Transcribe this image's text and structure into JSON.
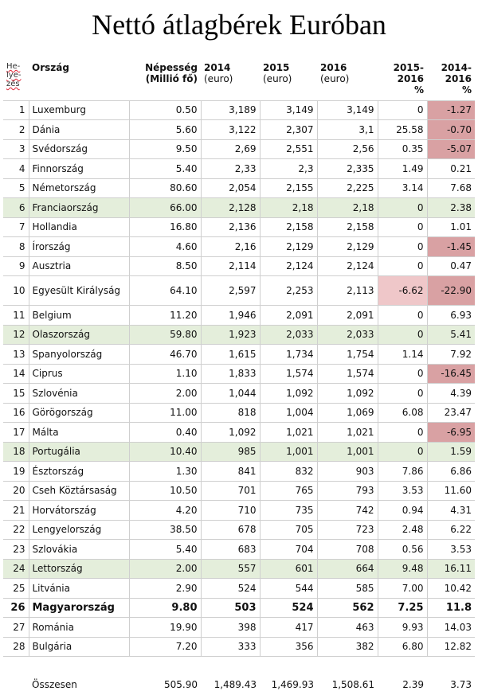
{
  "title": "Nettó átlagbérek Euróban",
  "headers": {
    "rank": "He-lye-zés",
    "country": "Ország",
    "population": "Népesség",
    "population_unit": "(Millió fő)",
    "y2014": "2014",
    "y2015": "2015",
    "y2016": "2016",
    "unit": "(euro)",
    "d1": "2015-2016",
    "d2": "2014-2016",
    "pct": "%"
  },
  "rows": [
    {
      "rank": "1",
      "country": "Luxemburg",
      "pop": "0.50",
      "y14": "3,189",
      "y15": "3,149",
      "y16": "3,149",
      "d1": "0",
      "d2": "-1.27"
    },
    {
      "rank": "2",
      "country": "Dánia",
      "pop": "5.60",
      "y14": "3,122",
      "y15": "2,307",
      "y16": "3,1",
      "d1": "25.58",
      "d2": "-0.70"
    },
    {
      "rank": "3",
      "country": "Svédország",
      "pop": "9.50",
      "y14": "2,69",
      "y15": "2,551",
      "y16": "2,56",
      "d1": "0.35",
      "d2": "-5.07"
    },
    {
      "rank": "4",
      "country": "Finnország",
      "pop": "5.40",
      "y14": "2,33",
      "y15": "2,3",
      "y16": "2,335",
      "d1": "1.49",
      "d2": "0.21"
    },
    {
      "rank": "5",
      "country": "Németország",
      "pop": "80.60",
      "y14": "2,054",
      "y15": "2,155",
      "y16": "2,225",
      "d1": "3.14",
      "d2": "7.68"
    },
    {
      "rank": "6",
      "country": "Franciaország",
      "pop": "66.00",
      "y14": "2,128",
      "y15": "2,18",
      "y16": "2,18",
      "d1": "0",
      "d2": "2.38"
    },
    {
      "rank": "7",
      "country": "Hollandia",
      "pop": "16.80",
      "y14": "2,136",
      "y15": "2,158",
      "y16": "2,158",
      "d1": "0",
      "d2": "1.01"
    },
    {
      "rank": "8",
      "country": "Írország",
      "pop": "4.60",
      "y14": "2,16",
      "y15": "2,129",
      "y16": "2,129",
      "d1": "0",
      "d2": "-1.45"
    },
    {
      "rank": "9",
      "country": "Ausztria",
      "pop": "8.50",
      "y14": "2,114",
      "y15": "2,124",
      "y16": "2,124",
      "d1": "0",
      "d2": "0.47"
    },
    {
      "rank": "10",
      "country": "Egyesült Királyság",
      "pop": "64.10",
      "y14": "2,597",
      "y15": "2,253",
      "y16": "2,113",
      "d1": "-6.62",
      "d2": "-22.90"
    },
    {
      "rank": "11",
      "country": "Belgium",
      "pop": "11.20",
      "y14": "1,946",
      "y15": "2,091",
      "y16": "2,091",
      "d1": "0",
      "d2": "6.93"
    },
    {
      "rank": "12",
      "country": "Olaszország",
      "pop": "59.80",
      "y14": "1,923",
      "y15": "2,033",
      "y16": "2,033",
      "d1": "0",
      "d2": "5.41"
    },
    {
      "rank": "13",
      "country": "Spanyolország",
      "pop": "46.70",
      "y14": "1,615",
      "y15": "1,734",
      "y16": "1,754",
      "d1": "1.14",
      "d2": "7.92"
    },
    {
      "rank": "14",
      "country": "Ciprus",
      "pop": "1.10",
      "y14": "1,833",
      "y15": "1,574",
      "y16": "1,574",
      "d1": "0",
      "d2": "-16.45"
    },
    {
      "rank": "15",
      "country": "Szlovénia",
      "pop": "2.00",
      "y14": "1,044",
      "y15": "1,092",
      "y16": "1,092",
      "d1": "0",
      "d2": "4.39"
    },
    {
      "rank": "16",
      "country": "Görögország",
      "pop": "11.00",
      "y14": "818",
      "y15": "1,004",
      "y16": "1,069",
      "d1": "6.08",
      "d2": "23.47"
    },
    {
      "rank": "17",
      "country": "Málta",
      "pop": "0.40",
      "y14": "1,092",
      "y15": "1,021",
      "y16": "1,021",
      "d1": "0",
      "d2": "-6.95"
    },
    {
      "rank": "18",
      "country": "Portugália",
      "pop": "10.40",
      "y14": "985",
      "y15": "1,001",
      "y16": "1,001",
      "d1": "0",
      "d2": "1.59"
    },
    {
      "rank": "19",
      "country": "Észtország",
      "pop": "1.30",
      "y14": "841",
      "y15": "832",
      "y16": "903",
      "d1": "7.86",
      "d2": "6.86"
    },
    {
      "rank": "20",
      "country": "Cseh Köztársaság",
      "pop": "10.50",
      "y14": "701",
      "y15": "765",
      "y16": "793",
      "d1": "3.53",
      "d2": "11.60"
    },
    {
      "rank": "21",
      "country": "Horvátország",
      "pop": "4.20",
      "y14": "710",
      "y15": "735",
      "y16": "742",
      "d1": "0.94",
      "d2": "4.31"
    },
    {
      "rank": "22",
      "country": "Lengyelország",
      "pop": "38.50",
      "y14": "678",
      "y15": "705",
      "y16": "723",
      "d1": "2.48",
      "d2": "6.22"
    },
    {
      "rank": "23",
      "country": "Szlovákia",
      "pop": "5.40",
      "y14": "683",
      "y15": "704",
      "y16": "708",
      "d1": "0.56",
      "d2": "3.53"
    },
    {
      "rank": "24",
      "country": "Lettország",
      "pop": "2.00",
      "y14": "557",
      "y15": "601",
      "y16": "664",
      "d1": "9.48",
      "d2": "16.11"
    },
    {
      "rank": "25",
      "country": "Litvánia",
      "pop": "2.90",
      "y14": "524",
      "y15": "544",
      "y16": "585",
      "d1": "7.00",
      "d2": "10.42"
    },
    {
      "rank": "26",
      "country": "Magyarország",
      "pop": "9.80",
      "y14": "503",
      "y15": "524",
      "y16": "562",
      "d1": "7.25",
      "d2": "11.8"
    },
    {
      "rank": "27",
      "country": "Románia",
      "pop": "19.90",
      "y14": "398",
      "y15": "417",
      "y16": "463",
      "d1": "9.93",
      "d2": "14.03"
    },
    {
      "rank": "28",
      "country": "Bulgária",
      "pop": "7.20",
      "y14": "333",
      "y15": "356",
      "y16": "382",
      "d1": "6.80",
      "d2": "12.82"
    }
  ],
  "total": {
    "label": "Összesen",
    "pop": "505.90",
    "y14": "1,489.43",
    "y15": "1,469.93",
    "y16": "1,508.61",
    "d1": "2.39",
    "d2": "3.73"
  },
  "colors": {
    "green_row": "#e4eedb",
    "red_cell": "#d9a1a3",
    "pink_cell": "#efc7c9"
  }
}
